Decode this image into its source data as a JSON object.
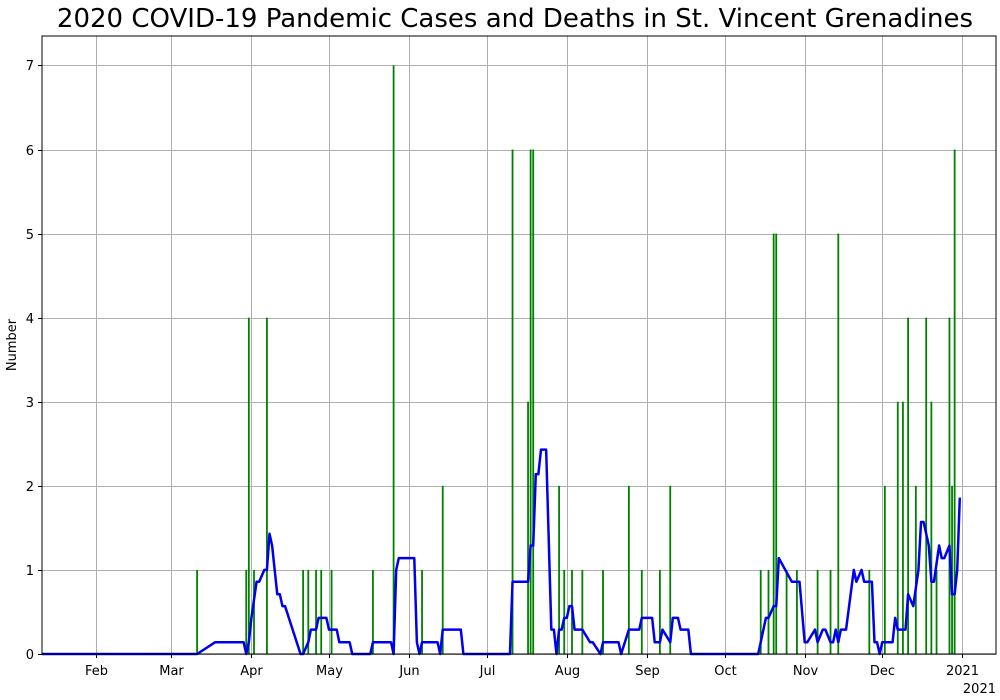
{
  "chart_data": {
    "type": "bar",
    "title": "2020 COVID-19 Pandemic Cases and Deaths in St. Vincent Grenadines",
    "xlabel": "",
    "ylabel": "Number",
    "xlim": [
      "2020-01-11",
      "2021-01-14"
    ],
    "ylim": [
      0,
      7.35
    ],
    "grid": true,
    "x_ticks": [
      {
        "date": "2020-02-01",
        "label": "Feb"
      },
      {
        "date": "2020-03-01",
        "label": "Mar"
      },
      {
        "date": "2020-04-01",
        "label": "Apr"
      },
      {
        "date": "2020-05-01",
        "label": "May"
      },
      {
        "date": "2020-06-01",
        "label": "Jun"
      },
      {
        "date": "2020-07-01",
        "label": "Jul"
      },
      {
        "date": "2020-08-01",
        "label": "Aug"
      },
      {
        "date": "2020-09-01",
        "label": "Sep"
      },
      {
        "date": "2020-10-01",
        "label": "Oct"
      },
      {
        "date": "2020-11-01",
        "label": "Nov"
      },
      {
        "date": "2020-12-01",
        "label": "Dec"
      },
      {
        "date": "2021-01-01",
        "label": "2021"
      }
    ],
    "x_offset_label": "2021",
    "y_ticks": [
      0,
      1,
      2,
      3,
      4,
      5,
      6,
      7
    ],
    "colors": {
      "bars": "#008000",
      "line": "#0000ee",
      "grid": "#b0b0b0"
    },
    "series": [
      {
        "type": "bar",
        "x": [
          "2020-03-11",
          "2020-03-30",
          "2020-03-31",
          "2020-04-02",
          "2020-04-07",
          "2020-04-21",
          "2020-04-23",
          "2020-04-26",
          "2020-04-28",
          "2020-05-02",
          "2020-05-18",
          "2020-05-26",
          "2020-06-06",
          "2020-06-14",
          "2020-07-11",
          "2020-07-17",
          "2020-07-18",
          "2020-07-19",
          "2020-07-29",
          "2020-07-31",
          "2020-08-03",
          "2020-08-07",
          "2020-08-15",
          "2020-08-25",
          "2020-08-30",
          "2020-09-06",
          "2020-09-10",
          "2020-10-15",
          "2020-10-18",
          "2020-10-20",
          "2020-10-21",
          "2020-10-25",
          "2020-10-29",
          "2020-11-06",
          "2020-11-11",
          "2020-11-14",
          "2020-11-26",
          "2020-12-02",
          "2020-12-07",
          "2020-12-09",
          "2020-12-11",
          "2020-12-14",
          "2020-12-18",
          "2020-12-20",
          "2020-12-22",
          "2020-12-27",
          "2020-12-28",
          "2020-12-29"
        ],
        "values": [
          1,
          1,
          4,
          1,
          4,
          1,
          1,
          1,
          1,
          1,
          1,
          7,
          1,
          2,
          6,
          3,
          6,
          6,
          2,
          1,
          1,
          1,
          1,
          2,
          1,
          1,
          2,
          1,
          1,
          5,
          5,
          1,
          1,
          1,
          1,
          5,
          1,
          2,
          3,
          3,
          4,
          2,
          4,
          3,
          1,
          4,
          2,
          6
        ]
      },
      {
        "type": "line",
        "x": [
          "2020-01-11",
          "2020-03-11",
          "2020-03-18",
          "2020-03-19",
          "2020-03-29",
          "2020-03-30",
          "2020-03-31",
          "2020-04-01",
          "2020-04-03",
          "2020-04-04",
          "2020-04-06",
          "2020-04-07",
          "2020-04-08",
          "2020-04-09",
          "2020-04-11",
          "2020-04-12",
          "2020-04-13",
          "2020-04-14",
          "2020-04-20",
          "2020-04-21",
          "2020-04-23",
          "2020-04-24",
          "2020-04-26",
          "2020-04-27",
          "2020-04-30",
          "2020-05-01",
          "2020-05-04",
          "2020-05-05",
          "2020-05-09",
          "2020-05-10",
          "2020-05-17",
          "2020-05-18",
          "2020-05-25",
          "2020-05-26",
          "2020-05-27",
          "2020-05-28",
          "2020-06-03",
          "2020-06-04",
          "2020-06-05",
          "2020-06-06",
          "2020-06-12",
          "2020-06-13",
          "2020-06-14",
          "2020-06-21",
          "2020-06-22",
          "2020-07-10",
          "2020-07-11",
          "2020-07-17",
          "2020-07-18",
          "2020-07-19",
          "2020-07-20",
          "2020-07-21",
          "2020-07-22",
          "2020-07-24",
          "2020-07-26",
          "2020-07-27",
          "2020-07-28",
          "2020-07-29",
          "2020-07-30",
          "2020-07-31",
          "2020-08-01",
          "2020-08-02",
          "2020-08-03",
          "2020-08-04",
          "2020-08-05",
          "2020-08-06",
          "2020-08-07",
          "2020-08-10",
          "2020-08-11",
          "2020-08-14",
          "2020-08-15",
          "2020-08-16",
          "2020-08-21",
          "2020-08-22",
          "2020-08-25",
          "2020-08-26",
          "2020-08-29",
          "2020-08-30",
          "2020-09-03",
          "2020-09-04",
          "2020-09-05",
          "2020-09-06",
          "2020-09-07",
          "2020-09-10",
          "2020-09-11",
          "2020-09-13",
          "2020-09-14",
          "2020-09-17",
          "2020-09-18",
          "2020-10-14",
          "2020-10-15",
          "2020-10-17",
          "2020-10-18",
          "2020-10-20",
          "2020-10-21",
          "2020-10-22",
          "2020-10-27",
          "2020-10-28",
          "2020-10-29",
          "2020-10-30",
          "2020-11-01",
          "2020-11-02",
          "2020-11-05",
          "2020-11-06",
          "2020-11-08",
          "2020-11-09",
          "2020-11-11",
          "2020-11-12",
          "2020-11-13",
          "2020-11-14",
          "2020-11-15",
          "2020-11-16",
          "2020-11-17",
          "2020-11-20",
          "2020-11-21",
          "2020-11-23",
          "2020-11-24",
          "2020-11-27",
          "2020-11-28",
          "2020-11-29",
          "2020-11-30",
          "2020-12-01",
          "2020-12-05",
          "2020-12-06",
          "2020-12-07",
          "2020-12-08",
          "2020-12-10",
          "2020-12-11",
          "2020-12-13",
          "2020-12-15",
          "2020-12-16",
          "2020-12-17",
          "2020-12-19",
          "2020-12-20",
          "2020-12-21",
          "2020-12-23",
          "2020-12-24",
          "2020-12-25",
          "2020-12-27",
          "2020-12-28",
          "2020-12-29",
          "2020-12-30",
          "2020-12-31"
        ],
        "values": [
          0,
          0,
          0.14,
          0.14,
          0.14,
          0,
          0.14,
          0.43,
          0.86,
          0.86,
          1.0,
          1.0,
          1.43,
          1.29,
          0.71,
          0.71,
          0.57,
          0.57,
          0,
          0,
          0.14,
          0.29,
          0.29,
          0.43,
          0.43,
          0.29,
          0.29,
          0.14,
          0.14,
          0,
          0,
          0.14,
          0.14,
          0,
          1.0,
          1.14,
          1.14,
          0.14,
          0,
          0.14,
          0.14,
          0,
          0.29,
          0.29,
          0,
          0,
          0.86,
          0.86,
          1.29,
          1.29,
          2.14,
          2.14,
          2.43,
          2.43,
          0.29,
          0.29,
          0,
          0.29,
          0.29,
          0.43,
          0.43,
          0.57,
          0.57,
          0.29,
          0.29,
          0.29,
          0.29,
          0.14,
          0.14,
          0,
          0.14,
          0.14,
          0.14,
          0,
          0.29,
          0.29,
          0.29,
          0.43,
          0.43,
          0.14,
          0.14,
          0.14,
          0.29,
          0.14,
          0.43,
          0.43,
          0.29,
          0.29,
          0,
          0,
          0.14,
          0.43,
          0.43,
          0.57,
          0.57,
          1.14,
          0.86,
          0.86,
          0.86,
          0.86,
          0.14,
          0.14,
          0.29,
          0.14,
          0.29,
          0.29,
          0.14,
          0.14,
          0.29,
          0.14,
          0.29,
          0.29,
          0.29,
          1.0,
          0.86,
          1.0,
          0.86,
          0.86,
          0.14,
          0.14,
          0,
          0.14,
          0.14,
          0.43,
          0.29,
          0.29,
          0.29,
          0.71,
          0.57,
          1.0,
          1.57,
          1.57,
          1.29,
          0.86,
          0.86,
          1.29,
          1.14,
          1.14,
          1.29,
          0.71,
          0.71,
          1.0,
          1.86
        ]
      }
    ]
  }
}
